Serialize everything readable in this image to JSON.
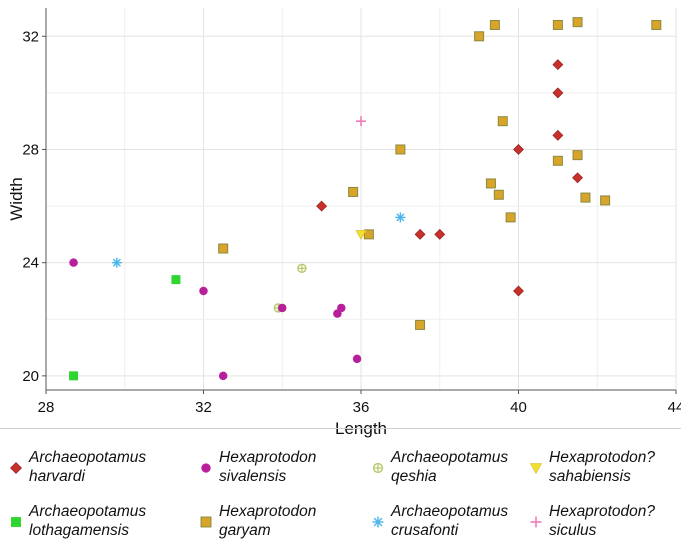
{
  "chart_data": {
    "type": "scatter",
    "xlabel": "Length",
    "ylabel": "Width",
    "xlim": [
      28,
      44
    ],
    "ylim": [
      19.5,
      33
    ],
    "xticks": [
      28,
      32,
      36,
      40,
      44
    ],
    "yticks": [
      20,
      24,
      28,
      32
    ],
    "grid": true,
    "legend_position": "bottom",
    "series": [
      {
        "name": "Archaeopotamus harvardi",
        "name_lines": [
          "Archaeopotamus",
          "harvardi"
        ],
        "marker": "diamond",
        "color": "#c8302c",
        "points": [
          [
            35.0,
            26.0
          ],
          [
            37.5,
            25.0
          ],
          [
            38.0,
            25.0
          ],
          [
            40.0,
            28.0
          ],
          [
            40.0,
            23.0
          ],
          [
            41.0,
            31.0
          ],
          [
            41.0,
            30.0
          ],
          [
            41.0,
            28.5
          ],
          [
            41.5,
            27.0
          ]
        ]
      },
      {
        "name": "Archaeopotamus lothagamensis",
        "name_lines": [
          "Archaeopotamus",
          "lothagamensis"
        ],
        "marker": "square",
        "color": "#2fd62f",
        "points": [
          [
            28.7,
            20.0
          ],
          [
            31.3,
            23.4
          ]
        ]
      },
      {
        "name": "Archaeopotamus qeshia",
        "name_lines": [
          "Archaeopotamus",
          "qeshia"
        ],
        "marker": "circle-plus",
        "color": "#b5c96a",
        "points": [
          [
            34.5,
            23.8
          ],
          [
            33.9,
            22.4
          ]
        ]
      },
      {
        "name": "Hexaprotodon garyam",
        "name_lines": [
          "Hexaprotodon",
          "garyam"
        ],
        "marker": "square-outlined",
        "color": "#d8a42a",
        "points": [
          [
            39.0,
            32.0
          ],
          [
            39.4,
            32.4
          ],
          [
            41.0,
            32.4
          ],
          [
            41.5,
            32.5
          ],
          [
            43.5,
            32.4
          ],
          [
            39.6,
            29.0
          ],
          [
            37.0,
            28.0
          ],
          [
            41.0,
            27.6
          ],
          [
            41.5,
            27.8
          ],
          [
            39.3,
            26.8
          ],
          [
            39.5,
            26.4
          ],
          [
            35.8,
            26.5
          ],
          [
            41.7,
            26.3
          ],
          [
            42.2,
            26.2
          ],
          [
            39.8,
            25.6
          ],
          [
            36.2,
            25.0
          ],
          [
            32.5,
            24.5
          ],
          [
            37.5,
            21.8
          ]
        ]
      },
      {
        "name": "Hexaprotodon sivalensis",
        "name_lines": [
          "Hexaprotodon",
          "sivalensis"
        ],
        "marker": "circle",
        "color": "#b8209b",
        "points": [
          [
            28.7,
            24.0
          ],
          [
            32.0,
            23.0
          ],
          [
            34.0,
            22.4
          ],
          [
            35.5,
            22.4
          ],
          [
            35.4,
            22.2
          ],
          [
            35.9,
            20.6
          ],
          [
            32.5,
            20.0
          ]
        ]
      },
      {
        "name": "Archaeopotamus crusafonti",
        "name_lines": [
          "Archaeopotamus",
          "crusafonti"
        ],
        "marker": "asterisk",
        "color": "#4ab5ea",
        "points": [
          [
            29.8,
            24.0
          ],
          [
            37.0,
            25.6
          ]
        ]
      },
      {
        "name": "Hexaprotodon? sahabiensis",
        "name_lines": [
          "Hexaprotodon?",
          "sahabiensis"
        ],
        "marker": "triangle-down",
        "color": "#f0e030",
        "points": [
          [
            36.0,
            25.0
          ]
        ]
      },
      {
        "name": "Hexaprotodon? siculus",
        "name_lines": [
          "Hexaprotodon?",
          "siculus"
        ],
        "marker": "plus",
        "color": "#f07ab8",
        "points": [
          [
            36.0,
            29.0
          ]
        ]
      }
    ]
  },
  "legend_order": [
    0,
    4,
    2,
    6,
    1,
    3,
    5,
    7
  ]
}
